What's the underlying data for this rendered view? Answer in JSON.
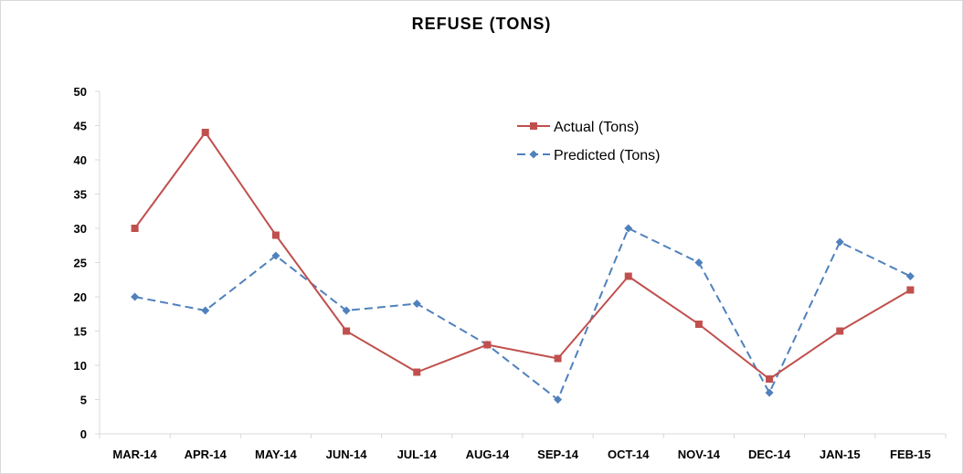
{
  "chart_data": {
    "type": "line",
    "title": "REFUSE (TONS)",
    "xlabel": "",
    "ylabel": "",
    "categories": [
      "MAR-14",
      "APR-14",
      "MAY-14",
      "JUN-14",
      "JUL-14",
      "AUG-14",
      "SEP-14",
      "OCT-14",
      "NOV-14",
      "DEC-14",
      "JAN-15",
      "FEB-15"
    ],
    "ylim": [
      0,
      50
    ],
    "yticks": [
      0,
      5,
      10,
      15,
      20,
      25,
      30,
      35,
      40,
      45,
      50
    ],
    "grid": false,
    "legend_position": "top-center",
    "series": [
      {
        "name": "Actual (Tons)",
        "values": [
          30,
          44,
          29,
          15,
          9,
          13,
          11,
          23,
          16,
          8,
          15,
          21
        ],
        "color": "#c0504d",
        "line_style": "solid",
        "marker": "square"
      },
      {
        "name": "Predicted (Tons)",
        "values": [
          20,
          18,
          26,
          18,
          19,
          13,
          5,
          30,
          25,
          6,
          28,
          23
        ],
        "color": "#4f81bd",
        "line_style": "dashed",
        "marker": "diamond"
      }
    ]
  },
  "axis_color": "#d9d9d9"
}
